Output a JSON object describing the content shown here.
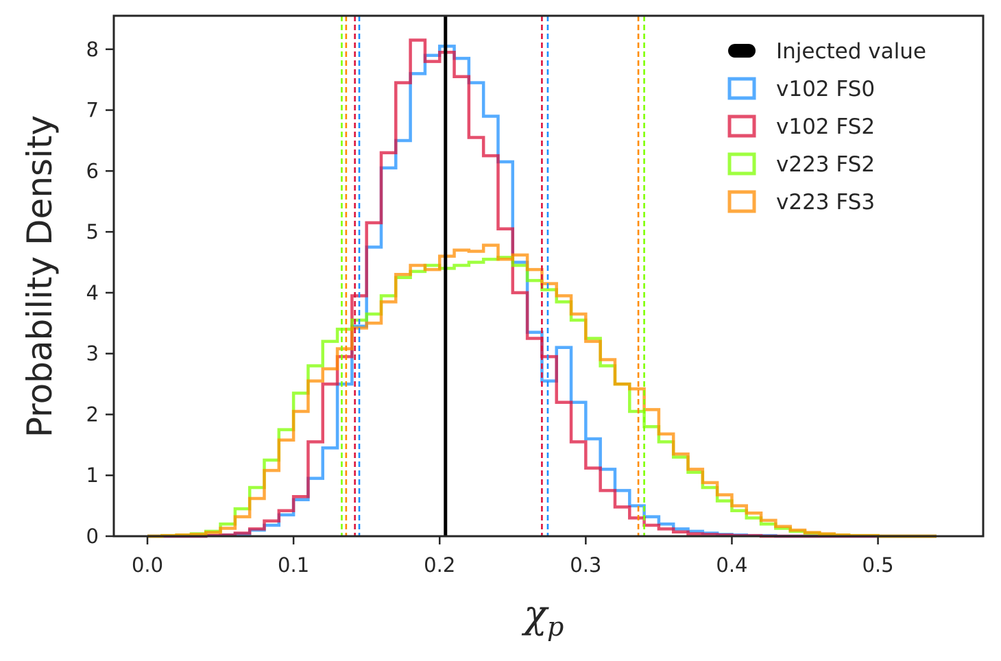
{
  "chart_data": {
    "type": "histogram",
    "title": "",
    "xlabel": "χ",
    "xlabel_subscript": "p",
    "ylabel": "Probability Density",
    "xlim": [
      -0.023,
      0.572
    ],
    "ylim": [
      0,
      8.55
    ],
    "xticks": [
      0.0,
      0.1,
      0.2,
      0.3,
      0.4,
      0.5
    ],
    "xtick_labels": [
      "0.0",
      "0.1",
      "0.2",
      "0.3",
      "0.4",
      "0.5"
    ],
    "yticks": [
      0,
      1,
      2,
      3,
      4,
      5,
      6,
      7,
      8
    ],
    "ytick_labels": [
      "0",
      "1",
      "2",
      "3",
      "4",
      "5",
      "6",
      "7",
      "8"
    ],
    "grid": false,
    "legend_position": "top-right",
    "injected_value": {
      "label": "Injected value",
      "x": 0.204,
      "color": "#000000"
    },
    "series": [
      {
        "name": "v102 FS0",
        "color": "#1e90ff",
        "interval": [
          0.145,
          0.274
        ],
        "edges": [
          0.0,
          0.01,
          0.02,
          0.03,
          0.04,
          0.05,
          0.06,
          0.07,
          0.08,
          0.09,
          0.1,
          0.11,
          0.12,
          0.13,
          0.14,
          0.15,
          0.16,
          0.17,
          0.18,
          0.19,
          0.2,
          0.21,
          0.22,
          0.23,
          0.24,
          0.25,
          0.26,
          0.27,
          0.28,
          0.29,
          0.3,
          0.31,
          0.32,
          0.33,
          0.34,
          0.35,
          0.36,
          0.37,
          0.38,
          0.39,
          0.4,
          0.41,
          0.42,
          0.43,
          0.44,
          0.45,
          0.46,
          0.47,
          0.48,
          0.49,
          0.5,
          0.51,
          0.52,
          0.53,
          0.54
        ],
        "values": [
          0.0,
          0.0,
          0.0,
          0.0,
          0.01,
          0.02,
          0.04,
          0.1,
          0.18,
          0.35,
          0.6,
          0.95,
          1.45,
          2.5,
          3.45,
          4.75,
          6.05,
          6.5,
          7.6,
          7.9,
          8.05,
          7.85,
          7.45,
          6.9,
          6.15,
          4.5,
          3.35,
          2.55,
          3.1,
          2.2,
          1.6,
          1.1,
          0.75,
          0.5,
          0.32,
          0.2,
          0.12,
          0.08,
          0.05,
          0.03,
          0.02,
          0.01,
          0.01,
          0.0,
          0.0,
          0.0,
          0.0,
          0.0,
          0.0,
          0.0,
          0.0,
          0.0,
          0.0,
          0.0
        ]
      },
      {
        "name": "v102 FS2",
        "color": "#dc143c",
        "interval": [
          0.142,
          0.27
        ],
        "edges": [
          0.0,
          0.01,
          0.02,
          0.03,
          0.04,
          0.05,
          0.06,
          0.07,
          0.08,
          0.09,
          0.1,
          0.11,
          0.12,
          0.13,
          0.14,
          0.15,
          0.16,
          0.17,
          0.18,
          0.19,
          0.2,
          0.21,
          0.22,
          0.23,
          0.24,
          0.25,
          0.26,
          0.27,
          0.28,
          0.29,
          0.3,
          0.31,
          0.32,
          0.33,
          0.34,
          0.35,
          0.36,
          0.37,
          0.38,
          0.39,
          0.4,
          0.41,
          0.42,
          0.43,
          0.44,
          0.45,
          0.46,
          0.47,
          0.48,
          0.49,
          0.5,
          0.51,
          0.52,
          0.53,
          0.54
        ],
        "values": [
          0.0,
          0.0,
          0.0,
          0.0,
          0.01,
          0.02,
          0.05,
          0.12,
          0.25,
          0.42,
          0.65,
          1.55,
          2.5,
          2.95,
          3.95,
          5.15,
          6.3,
          7.45,
          8.15,
          7.8,
          7.95,
          7.55,
          6.55,
          6.25,
          5.05,
          4.0,
          3.25,
          2.95,
          2.2,
          1.55,
          1.12,
          0.75,
          0.48,
          0.3,
          0.18,
          0.12,
          0.07,
          0.04,
          0.03,
          0.02,
          0.01,
          0.01,
          0.0,
          0.0,
          0.0,
          0.0,
          0.0,
          0.0,
          0.0,
          0.0,
          0.0,
          0.0,
          0.0,
          0.0
        ]
      },
      {
        "name": "v223 FS2",
        "color": "#7fff00",
        "interval": [
          0.133,
          0.34
        ],
        "edges": [
          0.0,
          0.01,
          0.02,
          0.03,
          0.04,
          0.05,
          0.06,
          0.07,
          0.08,
          0.09,
          0.1,
          0.11,
          0.12,
          0.13,
          0.14,
          0.15,
          0.16,
          0.17,
          0.18,
          0.19,
          0.2,
          0.21,
          0.22,
          0.23,
          0.24,
          0.25,
          0.26,
          0.27,
          0.28,
          0.29,
          0.3,
          0.31,
          0.32,
          0.33,
          0.34,
          0.35,
          0.36,
          0.37,
          0.38,
          0.39,
          0.4,
          0.41,
          0.42,
          0.43,
          0.44,
          0.45,
          0.46,
          0.47,
          0.48,
          0.49,
          0.5,
          0.51,
          0.52,
          0.53,
          0.54
        ],
        "values": [
          0.0,
          0.01,
          0.02,
          0.04,
          0.08,
          0.2,
          0.45,
          0.8,
          1.25,
          1.75,
          2.35,
          2.8,
          3.2,
          3.4,
          3.55,
          3.65,
          3.95,
          4.25,
          4.35,
          4.45,
          4.4,
          4.45,
          4.5,
          4.55,
          4.58,
          4.45,
          4.2,
          4.05,
          3.85,
          3.55,
          3.25,
          2.8,
          2.5,
          2.05,
          1.8,
          1.55,
          1.3,
          1.05,
          0.8,
          0.58,
          0.42,
          0.3,
          0.2,
          0.13,
          0.08,
          0.05,
          0.03,
          0.02,
          0.01,
          0.01,
          0.0,
          0.0,
          0.0,
          0.0
        ]
      },
      {
        "name": "v223 FS3",
        "color": "#ff8c00",
        "interval": [
          0.136,
          0.336
        ],
        "edges": [
          0.0,
          0.01,
          0.02,
          0.03,
          0.04,
          0.05,
          0.06,
          0.07,
          0.08,
          0.09,
          0.1,
          0.11,
          0.12,
          0.13,
          0.14,
          0.15,
          0.16,
          0.17,
          0.18,
          0.19,
          0.2,
          0.21,
          0.22,
          0.23,
          0.24,
          0.25,
          0.26,
          0.27,
          0.28,
          0.29,
          0.3,
          0.31,
          0.32,
          0.33,
          0.34,
          0.35,
          0.36,
          0.37,
          0.38,
          0.39,
          0.4,
          0.41,
          0.42,
          0.43,
          0.44,
          0.45,
          0.46,
          0.47,
          0.48,
          0.49,
          0.5,
          0.51,
          0.52,
          0.53,
          0.54
        ],
        "values": [
          0.0,
          0.01,
          0.02,
          0.03,
          0.06,
          0.13,
          0.32,
          0.62,
          1.08,
          1.58,
          2.05,
          2.55,
          2.75,
          3.08,
          3.42,
          3.5,
          3.85,
          4.3,
          4.45,
          4.38,
          4.6,
          4.7,
          4.68,
          4.78,
          4.55,
          4.62,
          4.38,
          4.15,
          3.95,
          3.65,
          3.2,
          2.9,
          2.5,
          2.42,
          2.08,
          1.68,
          1.35,
          1.1,
          0.88,
          0.68,
          0.5,
          0.38,
          0.26,
          0.16,
          0.1,
          0.06,
          0.04,
          0.02,
          0.01,
          0.01,
          0.0,
          0.0,
          0.0,
          0.0
        ]
      }
    ]
  }
}
